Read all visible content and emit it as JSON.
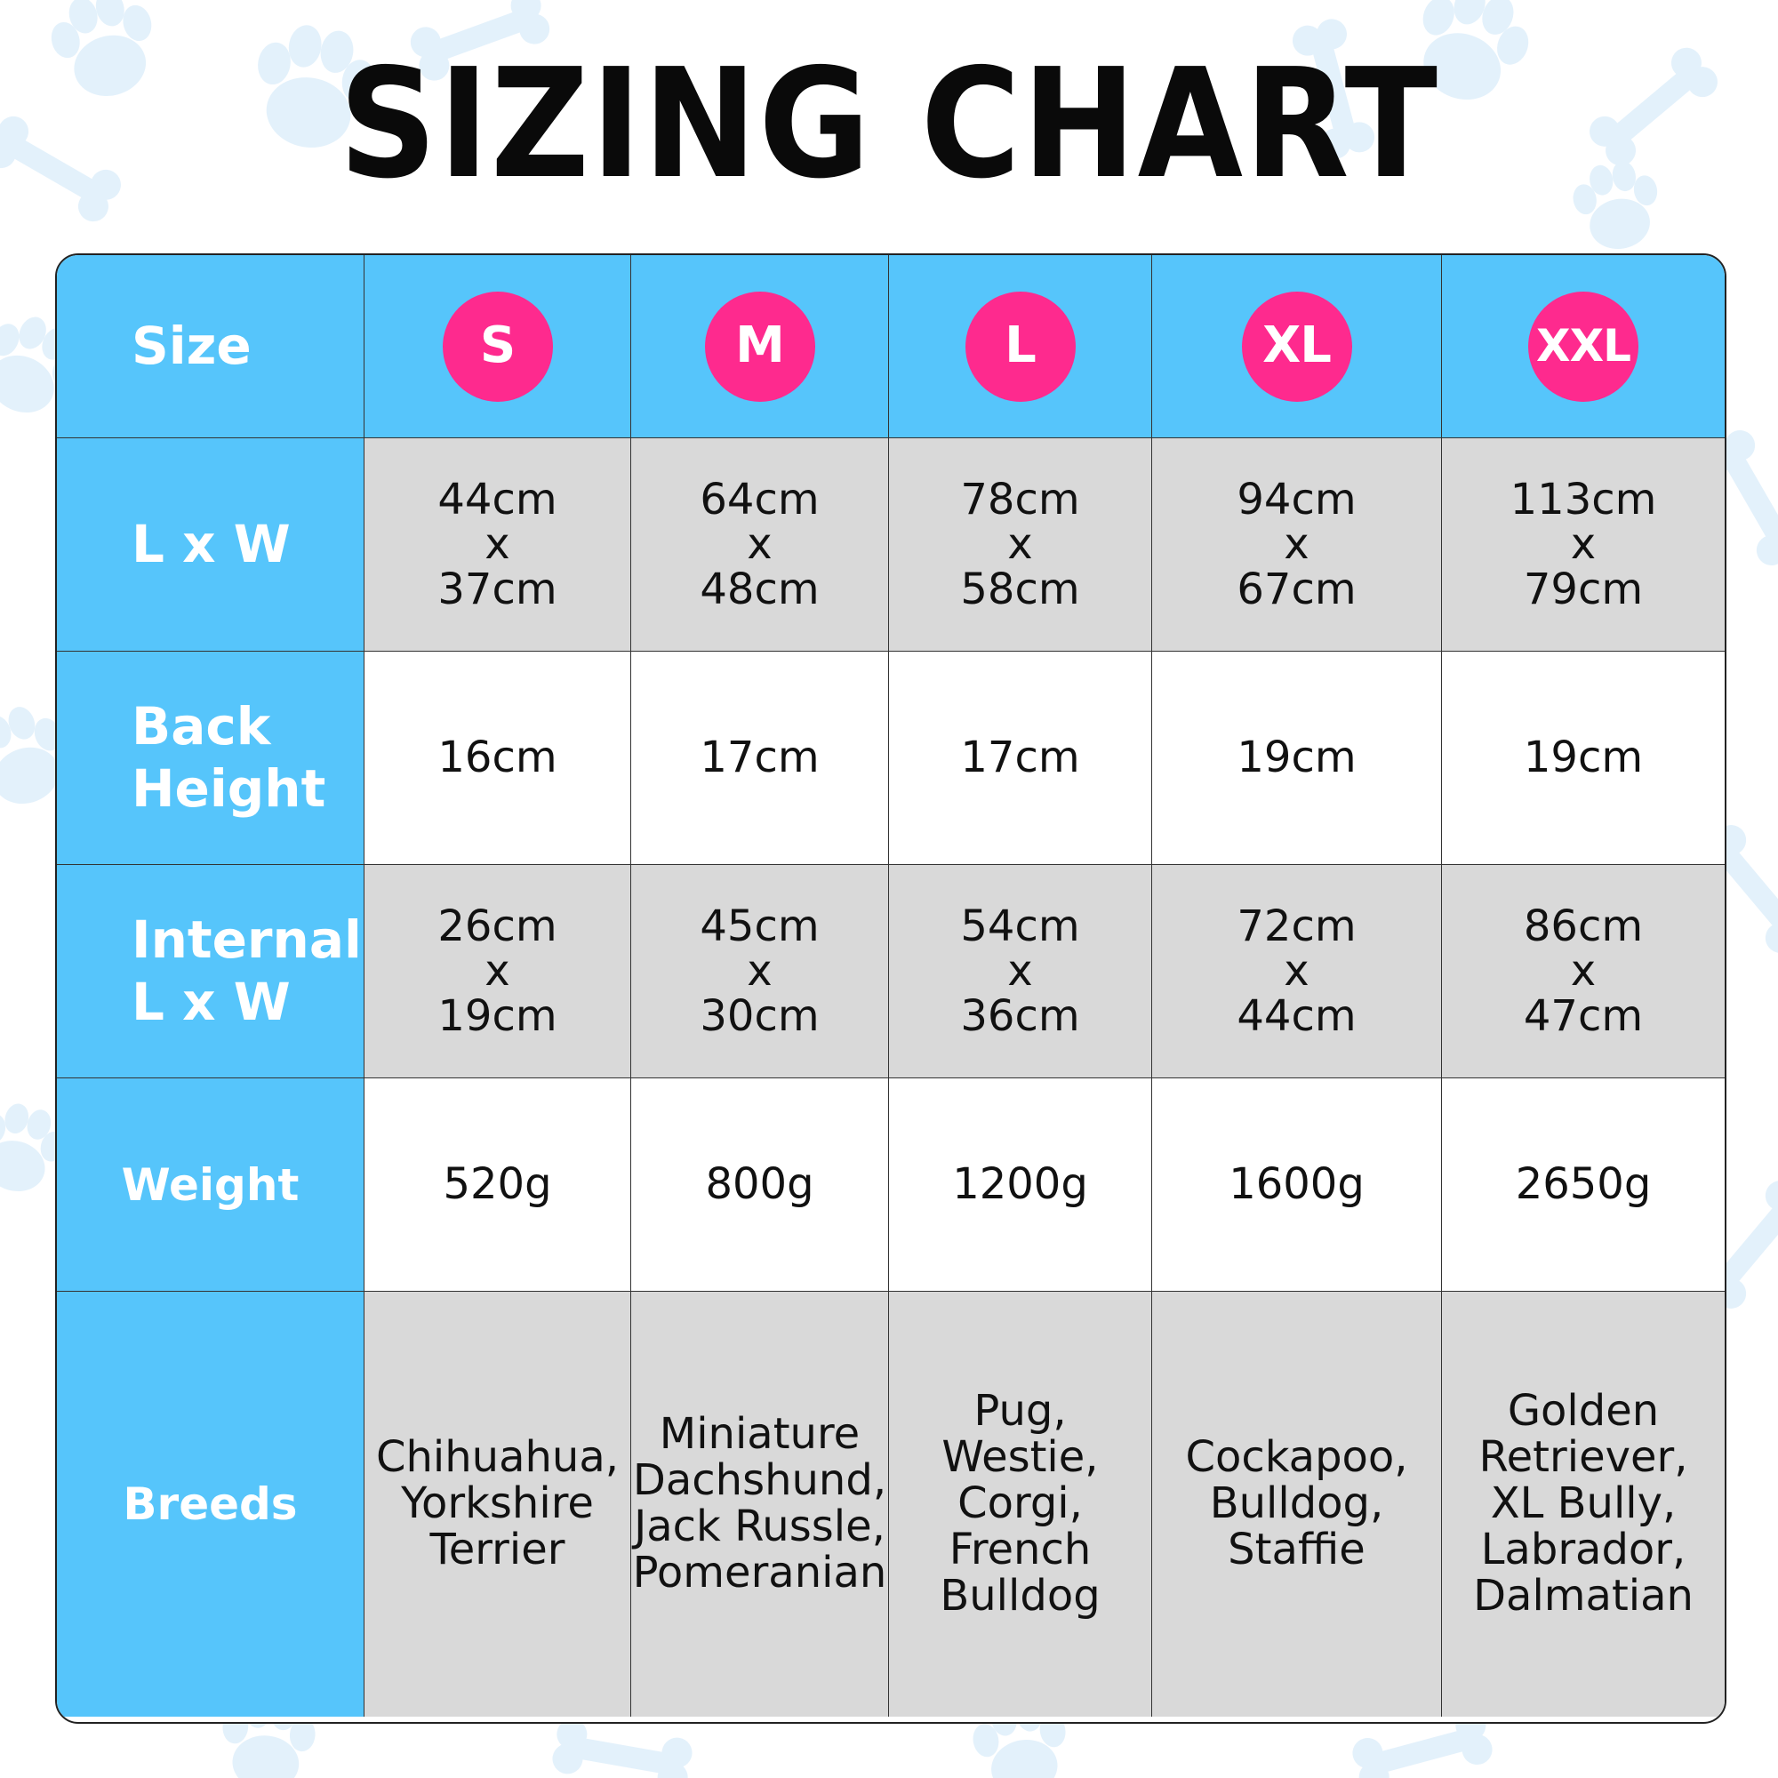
{
  "title": "SIZING CHART",
  "colors": {
    "header_blue": "#56c5fb",
    "badge_pink": "#fe2a8e",
    "shaded_row": "#d9d9d9",
    "paw_pattern": "#e3f1fb"
  },
  "header_label": "Size",
  "row_labels": {
    "lxw": "L x W",
    "back_height": "Back\nHeight",
    "internal": "Internal\nL x W",
    "weight": "Weight",
    "breeds": "Breeds"
  },
  "chart_data": {
    "type": "table",
    "title": "SIZING CHART",
    "columns": [
      "S",
      "M",
      "L",
      "XL",
      "XXL"
    ],
    "rows": {
      "lxw": [
        {
          "l": "44cm",
          "x": "x",
          "w": "37cm"
        },
        {
          "l": "64cm",
          "x": "x",
          "w": "48cm"
        },
        {
          "l": "78cm",
          "x": "x",
          "w": "58cm"
        },
        {
          "l": "94cm",
          "x": "x",
          "w": "67cm"
        },
        {
          "l": "113cm",
          "x": "x",
          "w": "79cm"
        }
      ],
      "back_height": [
        "16cm",
        "17cm",
        "17cm",
        "19cm",
        "19cm"
      ],
      "internal": [
        {
          "l": "26cm",
          "x": "x",
          "w": "19cm"
        },
        {
          "l": "45cm",
          "x": "x",
          "w": "30cm"
        },
        {
          "l": "54cm",
          "x": "x",
          "w": "36cm"
        },
        {
          "l": "72cm",
          "x": "x",
          "w": "44cm"
        },
        {
          "l": "86cm",
          "x": "x",
          "w": "47cm"
        }
      ],
      "weight": [
        "520g",
        "800g",
        "1200g",
        "1600g",
        "2650g"
      ],
      "breeds": [
        "Chihuahua,\nYorkshire\nTerrier",
        "Miniature\nDachshund,\nJack Russle,\nPomeranian",
        "Pug,\nWestie,\nCorgi,\nFrench\nBulldog",
        "Cockapoo,\nBulldog,\nStaffie",
        "Golden\nRetriever,\nXL Bully,\nLabrador,\nDalmatian"
      ]
    }
  }
}
